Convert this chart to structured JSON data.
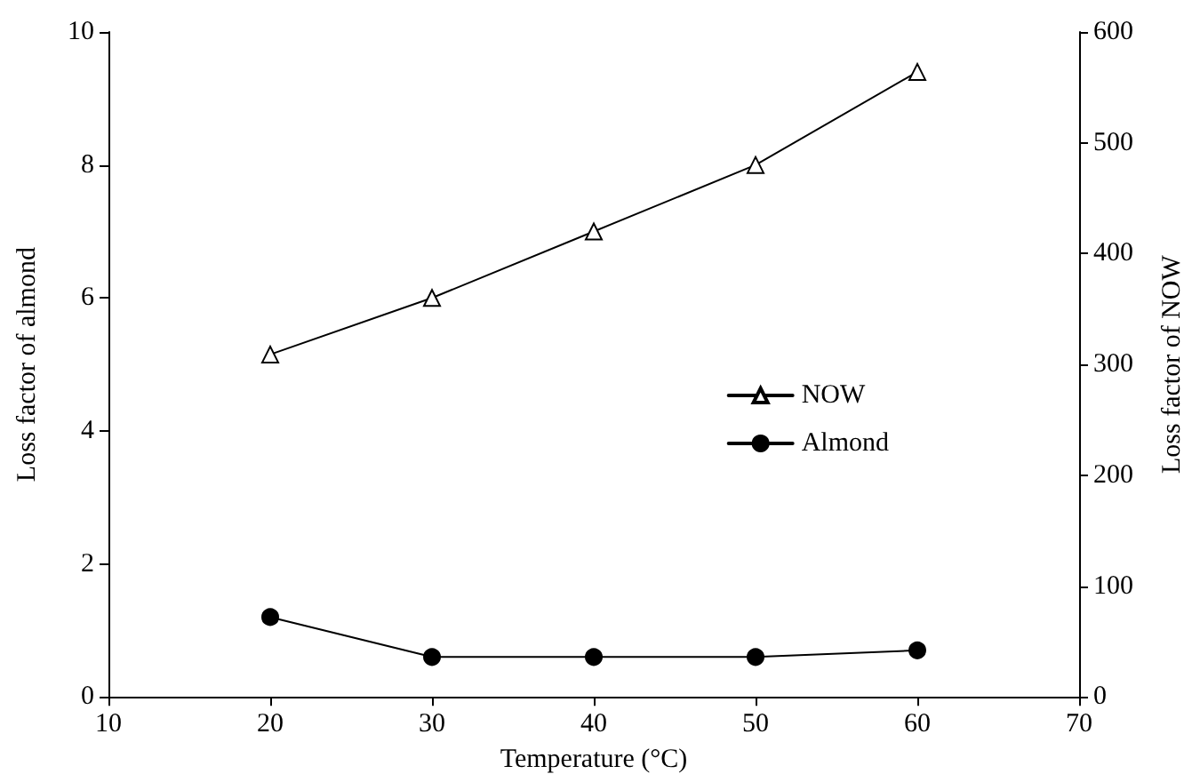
{
  "chart_data": {
    "type": "line",
    "xlabel": "Temperature (°C)",
    "ylabel": "Loss factor of almond",
    "y2label": "Loss factor of NOW",
    "x": [
      20,
      30,
      40,
      50,
      60
    ],
    "series": [
      {
        "name": "NOW",
        "color": "#000000",
        "marker": "triangle",
        "axis": "y2",
        "values": [
          309,
          360,
          420,
          480,
          564
        ]
      },
      {
        "name": "Almond",
        "color": "#000000",
        "marker": "circle",
        "values": [
          1.2,
          0.6,
          0.6,
          0.6,
          0.7
        ]
      }
    ],
    "xlim": [
      10,
      70
    ],
    "xticks": [
      10,
      20,
      30,
      40,
      50,
      60,
      70
    ],
    "ylim": [
      0,
      10
    ],
    "yticks": [
      0,
      2,
      4,
      6,
      8,
      10
    ],
    "y2lim": [
      0,
      600
    ],
    "y2ticks": [
      0,
      100,
      200,
      300,
      400,
      500,
      600
    ],
    "grid": false,
    "legend": "right",
    "line_style": "solid"
  }
}
